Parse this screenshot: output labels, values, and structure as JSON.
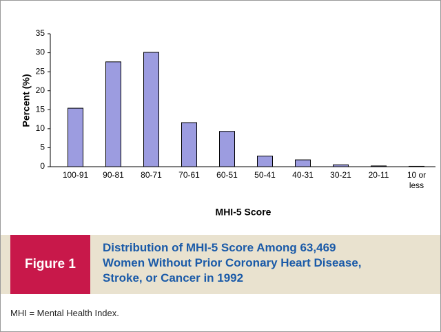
{
  "chart_data": {
    "type": "bar",
    "ylabel": "Percent (%)",
    "xlabel": "MHI-5 Score",
    "categories": [
      "100-91",
      "90-81",
      "80-71",
      "70-61",
      "60-51",
      "50-41",
      "40-31",
      "30-21",
      "20-11",
      "10 or less"
    ],
    "values": [
      15.4,
      27.6,
      30.1,
      11.6,
      9.3,
      2.8,
      1.8,
      0.5,
      0.2,
      0.1
    ],
    "color": "#9c9ce0",
    "ylim": [
      0,
      35
    ],
    "yticks": [
      0,
      5,
      10,
      15,
      20,
      25,
      30,
      35
    ]
  },
  "figure": {
    "label": "Figure 1",
    "caption": "Distribution of MHI-5 Score Among 63,469 Women Without Prior Coronary Heart Disease, Stroke, or Cancer in 1992",
    "footnote": "MHI = Mental Health Index."
  }
}
